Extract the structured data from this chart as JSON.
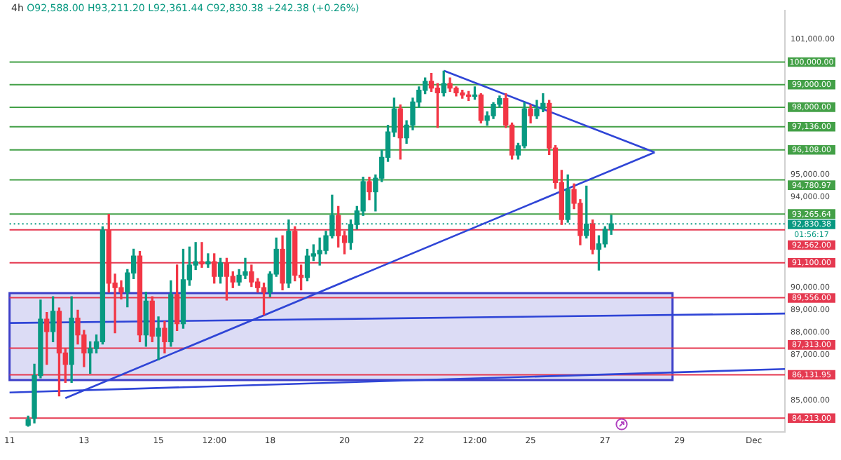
{
  "chart_data": {
    "type": "candlestick",
    "title": "4h",
    "subtitle": "O92,588.00 H93,211.20 L92,361.44 C92,830.38 +242.38 (+0.26%)",
    "categories": [
      "11",
      null,
      null,
      null,
      null,
      null,
      null,
      null,
      null,
      null,
      null,
      null,
      "13",
      null,
      null,
      null,
      null,
      null,
      null,
      null,
      null,
      null,
      null,
      null,
      "15",
      null,
      null,
      null,
      null,
      null,
      null,
      null,
      null,
      "12:00",
      null,
      null,
      null,
      null,
      null,
      null,
      null,
      null,
      "18",
      null,
      null,
      null,
      null,
      null,
      null,
      null,
      null,
      null,
      null,
      null,
      "20",
      null,
      null,
      null,
      null,
      null,
      null,
      null,
      null,
      null,
      null,
      null,
      "22",
      null,
      null,
      null,
      null,
      null,
      null,
      null,
      null,
      "12:00",
      null,
      null,
      null,
      null,
      null,
      null,
      null,
      null,
      "25",
      null,
      null,
      null,
      null,
      null,
      null,
      null,
      null,
      null,
      null,
      null,
      "27",
      null,
      null,
      null,
      null,
      null,
      null,
      null,
      null,
      null,
      null,
      null,
      "29",
      null,
      null,
      null,
      null,
      null,
      null,
      null,
      null,
      null,
      null,
      null,
      "Dec",
      null,
      null,
      null,
      null,
      null
    ],
    "ohlc": [
      null,
      null,
      null,
      [
        83900,
        84300,
        83850,
        84150
      ],
      [
        84200,
        86600,
        84000,
        86100
      ],
      [
        86100,
        89450,
        86000,
        88600
      ],
      [
        88600,
        88900,
        86600,
        88050
      ],
      [
        88050,
        89600,
        87600,
        88950
      ],
      [
        88950,
        89100,
        85200,
        87100
      ],
      [
        87100,
        87300,
        85800,
        86600
      ],
      [
        86600,
        89600,
        85800,
        88650
      ],
      [
        88650,
        89000,
        87500,
        87900
      ],
      [
        87900,
        88100,
        86500,
        87100
      ],
      [
        87100,
        87600,
        86200,
        87300
      ],
      [
        87300,
        87900,
        87100,
        87600
      ],
      [
        87600,
        92700,
        87500,
        92550
      ],
      [
        92550,
        93250,
        89800,
        90200
      ],
      [
        90200,
        90600,
        88000,
        90000
      ],
      [
        90000,
        90300,
        89500,
        89800
      ],
      [
        89800,
        90800,
        89150,
        90650
      ],
      [
        90650,
        91700,
        90400,
        91400
      ],
      [
        91400,
        91600,
        87600,
        87900
      ],
      [
        87900,
        89800,
        87400,
        89400
      ],
      [
        89400,
        89600,
        87600,
        87850
      ],
      [
        87850,
        88700,
        86800,
        88200
      ],
      [
        88200,
        88500,
        87100,
        87600
      ],
      [
        87600,
        90300,
        87400,
        89700
      ],
      [
        89700,
        91000,
        88100,
        88400
      ],
      [
        88400,
        91700,
        88200,
        90350
      ],
      [
        90350,
        91800,
        90100,
        91000
      ],
      [
        91000,
        92000,
        90800,
        91150
      ],
      [
        91150,
        92000,
        90900,
        91050
      ],
      [
        91050,
        91500,
        90900,
        91150
      ],
      [
        91150,
        91500,
        90200,
        90500
      ],
      [
        90500,
        91300,
        90200,
        91100
      ],
      [
        91100,
        91300,
        89450,
        90500
      ],
      [
        90500,
        90700,
        90000,
        90250
      ],
      [
        90250,
        90800,
        90100,
        90550
      ],
      [
        90550,
        91300,
        90400,
        90700
      ],
      [
        90700,
        91000,
        90050,
        90250
      ],
      [
        90250,
        90400,
        89800,
        90000
      ],
      [
        90000,
        90200,
        88800,
        89800
      ],
      [
        89800,
        90700,
        89600,
        90600
      ],
      [
        90600,
        92200,
        90500,
        91700
      ],
      [
        91700,
        92300,
        89900,
        90200
      ],
      [
        90200,
        93000,
        90000,
        92500
      ],
      [
        92500,
        92700,
        90300,
        90550
      ],
      [
        90550,
        91000,
        89900,
        90450
      ],
      [
        90450,
        91700,
        90300,
        91400
      ],
      [
        91400,
        91900,
        91200,
        91500
      ],
      [
        91500,
        92200,
        91000,
        91650
      ],
      [
        91650,
        92500,
        91500,
        92300
      ],
      [
        92300,
        94100,
        92200,
        93200
      ],
      [
        93200,
        93600,
        91800,
        92300
      ],
      [
        92300,
        92500,
        91500,
        92000
      ],
      [
        92000,
        93000,
        91700,
        92800
      ],
      [
        92800,
        93600,
        92600,
        93400
      ],
      [
        93400,
        94900,
        93200,
        94700
      ],
      [
        94700,
        94900,
        93900,
        94250
      ],
      [
        94250,
        95000,
        93400,
        94850
      ],
      [
        94850,
        96100,
        94700,
        95780
      ],
      [
        95780,
        97200,
        95600,
        96900
      ],
      [
        96900,
        98400,
        96700,
        97930
      ],
      [
        97930,
        98100,
        95700,
        96640
      ],
      [
        96640,
        97400,
        96400,
        97210
      ],
      [
        97210,
        98400,
        97000,
        98230
      ],
      [
        98230,
        98900,
        98000,
        98750
      ],
      [
        98750,
        99300,
        98600,
        99150
      ],
      [
        99150,
        99500,
        98700,
        98850
      ],
      [
        98850,
        99050,
        97100,
        98640
      ],
      [
        98640,
        99600,
        98500,
        99050
      ],
      [
        99050,
        99300,
        98700,
        98850
      ],
      [
        98850,
        98900,
        98500,
        98640
      ],
      [
        98640,
        98750,
        98400,
        98540
      ],
      [
        98540,
        98700,
        98300,
        98480
      ],
      [
        98480,
        98900,
        98350,
        98540
      ],
      [
        98540,
        98600,
        97300,
        97420
      ],
      [
        97420,
        97800,
        97200,
        97620
      ],
      [
        97620,
        98200,
        97500,
        98130
      ],
      [
        98130,
        98500,
        98000,
        98380
      ],
      [
        98380,
        98600,
        97100,
        97210
      ],
      [
        97210,
        97300,
        95700,
        95880
      ],
      [
        95880,
        96400,
        95700,
        96290
      ],
      [
        96290,
        98200,
        96200,
        97930
      ],
      [
        97930,
        98100,
        97300,
        97620
      ],
      [
        97620,
        98300,
        97500,
        97930
      ],
      [
        97930,
        98600,
        97800,
        98170
      ],
      [
        98170,
        98300,
        95900,
        96190
      ],
      [
        96190,
        96300,
        94400,
        94660
      ],
      [
        94660,
        95200,
        92800,
        93020
      ],
      [
        93020,
        95000,
        92900,
        94350
      ],
      [
        94350,
        94600,
        93500,
        93740
      ],
      [
        93740,
        93900,
        91900,
        92310
      ],
      [
        92310,
        94500,
        92200,
        92820
      ],
      [
        92820,
        93000,
        91500,
        91700
      ],
      [
        91700,
        92300,
        90780,
        91940
      ],
      [
        91940,
        92700,
        91800,
        92588
      ],
      [
        92588.0,
        93211.2,
        92361.44,
        92830.38
      ],
      null,
      null,
      null,
      null,
      null,
      null,
      null,
      null,
      null,
      null,
      null,
      null,
      null,
      null,
      null,
      null,
      null,
      null,
      null,
      null,
      null,
      null,
      null,
      null,
      null,
      null,
      null,
      null
    ],
    "colors": [
      null,
      null,
      null,
      "#089981",
      "#089981",
      "#089981",
      "#f23645",
      "#089981",
      "#f23645",
      "#f23645",
      "#089981",
      "#f23645",
      "#f23645",
      "#089981",
      "#089981",
      "#089981",
      "#f23645",
      "#f23645",
      "#f23645",
      "#089981",
      "#089981",
      "#f23645",
      "#089981",
      "#f23645",
      "#089981",
      "#f23645",
      "#089981",
      "#f23645",
      "#089981",
      "#089981",
      "#089981",
      "#f23645",
      "#089981",
      "#f23645",
      "#089981",
      "#f23645",
      "#f23645",
      "#089981",
      "#089981",
      "#f23645",
      "#f23645",
      "#f23645",
      "#089981",
      "#089981",
      "#f23645",
      "#089981",
      "#f23645",
      "#f23645",
      "#089981",
      "#089981",
      "#089981",
      "#089981",
      "#089981",
      "#f23645",
      "#f23645",
      "#089981",
      "#089981",
      "#089981",
      "#f23645",
      "#089981",
      "#089981",
      "#089981",
      "#089981",
      "#f23645",
      "#089981",
      "#089981",
      "#089981",
      "#089981",
      "#f23645",
      "#f23645",
      "#089981",
      "#f23645",
      "#f23645",
      "#f23645",
      "#f23645",
      "#089981",
      "#f23645",
      "#089981",
      "#089981",
      "#089981",
      "#f23645",
      "#f23645",
      "#089981",
      "#089981",
      "#f23645",
      "#089981",
      "#089981",
      "#f23645",
      "#f23645",
      "#f23645",
      "#089981",
      "#f23645",
      "#f23645",
      "#089981",
      "#f23645",
      "#089981",
      "#089981",
      "#089981",
      null,
      null,
      null,
      null,
      null,
      null,
      null,
      null,
      null,
      null,
      null,
      null,
      null,
      null,
      null,
      null,
      null,
      null,
      null,
      null,
      null,
      null,
      null,
      null,
      null,
      null,
      null,
      null
    ],
    "series": [
      {
        "type": "line",
        "color": "#2f45d6",
        "values": [
          null,
          null,
          null,
          null,
          null,
          null,
          null,
          null,
          null,
          85100,
          null,
          null,
          null,
          null,
          null,
          null,
          null,
          null,
          null,
          null,
          null,
          null,
          null,
          null,
          null,
          null,
          null,
          null,
          null,
          null,
          null,
          null,
          null,
          null,
          null,
          null,
          null,
          null,
          null,
          null,
          null,
          null,
          null,
          null,
          null,
          null,
          null,
          null,
          null,
          null,
          null,
          null,
          null,
          null,
          null,
          null,
          null,
          null,
          null,
          null,
          null,
          null,
          null,
          null,
          null,
          null,
          null,
          null,
          null,
          null,
          null,
          null,
          null,
          null,
          null,
          null,
          null,
          null,
          null,
          null,
          null,
          null,
          null,
          null,
          null,
          null,
          null,
          null,
          null,
          null,
          null,
          null,
          null,
          null,
          null,
          null,
          null,
          null,
          null,
          null,
          null,
          null,
          null,
          null,
          96000,
          null,
          null,
          null,
          null,
          null,
          null,
          null,
          null,
          null,
          null,
          null,
          null,
          null,
          null,
          null,
          null,
          null,
          null,
          null,
          null,
          null
        ]
      },
      {
        "type": "line",
        "color": "#2f45d6",
        "values": [
          null,
          null,
          null,
          null,
          null,
          null,
          null,
          null,
          null,
          null,
          null,
          null,
          null,
          null,
          null,
          null,
          null,
          null,
          null,
          null,
          null,
          null,
          null,
          null,
          null,
          null,
          null,
          null,
          null,
          null,
          null,
          null,
          null,
          null,
          null,
          null,
          null,
          null,
          null,
          null,
          null,
          null,
          null,
          null,
          null,
          null,
          null,
          null,
          null,
          null,
          null,
          null,
          null,
          null,
          null,
          null,
          null,
          null,
          null,
          null,
          null,
          null,
          null,
          null,
          null,
          null,
          null,
          null,
          null,
          null,
          99620,
          null,
          null,
          null,
          null,
          null,
          null,
          null,
          null,
          null,
          null,
          null,
          null,
          null,
          null,
          null,
          null,
          null,
          null,
          null,
          null,
          null,
          null,
          null,
          null,
          null,
          null,
          null,
          null,
          null,
          null,
          null,
          null,
          null,
          96000,
          null,
          null,
          null,
          null,
          null,
          null,
          null,
          null,
          null,
          null,
          null,
          null,
          null,
          null,
          null,
          null,
          null,
          null,
          null,
          null,
          null
        ]
      },
      {
        "type": "line",
        "color": "#2f45d6",
        "values": [
          85350,
          null,
          null,
          null,
          null,
          null,
          null,
          null,
          null,
          null,
          null,
          null,
          null,
          null,
          null,
          null,
          null,
          null,
          null,
          null,
          null,
          null,
          null,
          null,
          null,
          null,
          null,
          null,
          null,
          null,
          null,
          null,
          null,
          null,
          null,
          null,
          null,
          null,
          null,
          null,
          null,
          null,
          null,
          null,
          null,
          null,
          null,
          null,
          null,
          null,
          null,
          null,
          null,
          null,
          null,
          null,
          null,
          null,
          null,
          null,
          null,
          null,
          null,
          null,
          null,
          null,
          null,
          null,
          null,
          null,
          null,
          null,
          null,
          null,
          null,
          null,
          null,
          null,
          null,
          null,
          null,
          null,
          null,
          null,
          null,
          null,
          null,
          null,
          null,
          null,
          null,
          null,
          null,
          null,
          null,
          null,
          null,
          null,
          null,
          null,
          null,
          null,
          null,
          null,
          null,
          null,
          null,
          null,
          null,
          null,
          null,
          null,
          null,
          null,
          null,
          null,
          null,
          null,
          null,
          null,
          null,
          null,
          null,
          null,
          null,
          86390
        ]
      },
      {
        "type": "line",
        "color": "#2f45d6",
        "values": [
          88430,
          null,
          null,
          null,
          null,
          null,
          null,
          null,
          null,
          null,
          null,
          null,
          null,
          null,
          null,
          null,
          null,
          null,
          null,
          null,
          null,
          null,
          null,
          null,
          null,
          null,
          null,
          null,
          null,
          null,
          null,
          null,
          null,
          null,
          null,
          null,
          null,
          null,
          null,
          null,
          null,
          null,
          null,
          null,
          null,
          null,
          null,
          null,
          null,
          null,
          null,
          null,
          null,
          null,
          null,
          null,
          null,
          null,
          null,
          null,
          null,
          null,
          null,
          null,
          null,
          null,
          null,
          null,
          null,
          null,
          null,
          null,
          null,
          null,
          null,
          null,
          null,
          null,
          null,
          null,
          null,
          null,
          null,
          null,
          null,
          null,
          null,
          null,
          null,
          null,
          null,
          null,
          null,
          null,
          null,
          null,
          null,
          null,
          null,
          null,
          null,
          null,
          null,
          null,
          null,
          null,
          null,
          null,
          null,
          null,
          null,
          null,
          null,
          null,
          null,
          null,
          null,
          null,
          null,
          null,
          null,
          null,
          null,
          null,
          null,
          88850
        ]
      }
    ],
    "ylim": [
      83600,
      102300
    ],
    "yticks": [
      {
        "value": 85000,
        "label": "85,000.00"
      },
      {
        "value": 87000,
        "label": "87,000.00"
      },
      {
        "value": 88000,
        "label": "88,000.00"
      },
      {
        "value": 89000,
        "label": "89,000.00"
      },
      {
        "value": 90000,
        "label": "90,000.00"
      },
      {
        "value": 94000,
        "label": "94,000.00"
      },
      {
        "value": 95000,
        "label": "95,000.00"
      },
      {
        "value": 101000,
        "label": "101,000.00"
      }
    ],
    "ref_lines": [
      {
        "axis": "y",
        "value": 100000,
        "label": "100,000.00",
        "color": "#43a047"
      },
      {
        "axis": "y",
        "value": 99000,
        "label": "99,000.00",
        "color": "#43a047"
      },
      {
        "axis": "y",
        "value": 98000,
        "label": "98,000.00",
        "color": "#43a047"
      },
      {
        "axis": "y",
        "value": 97136,
        "label": "97,136.00",
        "color": "#43a047"
      },
      {
        "axis": "y",
        "value": 96108,
        "label": "96,108.00",
        "color": "#43a047"
      },
      {
        "axis": "y",
        "value": 94780.97,
        "label": "94,780.97",
        "color": "#43a047"
      },
      {
        "axis": "y",
        "value": 93265.64,
        "label": "93,265.64",
        "color": "#43a047"
      },
      {
        "axis": "y",
        "value": 92830.38,
        "label": "92,830.38",
        "color": "#089981",
        "line_style": "dotted"
      },
      {
        "axis": "y",
        "value": 92562,
        "label": "92,562.00",
        "color": "#e53950"
      },
      {
        "axis": "y",
        "value": 91100,
        "label": "91,100.00",
        "color": "#e53950"
      },
      {
        "axis": "y",
        "value": 89556,
        "label": "89,556.00",
        "color": "#e53950"
      },
      {
        "axis": "y",
        "value": 87313,
        "label": "87,313.00",
        "color": "#e53950"
      },
      {
        "axis": "y",
        "value": 86131.95,
        "label": "86,131.95",
        "color": "#e53950"
      },
      {
        "axis": "y",
        "value": 84213,
        "label": "84,213.00",
        "color": "#e53950"
      }
    ],
    "bands": [
      {
        "axis": "y",
        "from": 85900,
        "to": 89760,
        "color": "#3d3fc8"
      }
    ],
    "annotations": [
      "01:56:17"
    ],
    "grid": false,
    "legend": false
  }
}
